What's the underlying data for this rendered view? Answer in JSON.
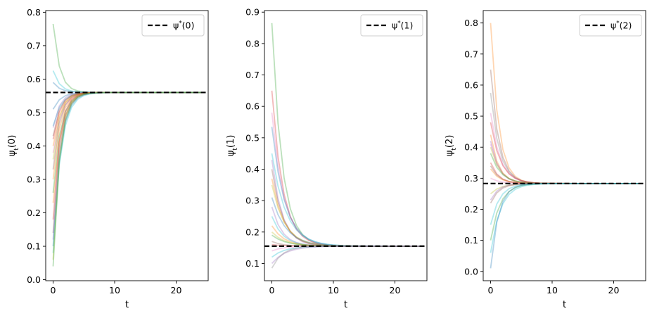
{
  "chart_data": [
    {
      "type": "line",
      "xlabel": "t",
      "ylabel": "ψ_t(0)",
      "xlim": [
        -1.2,
        25.2
      ],
      "ylim": [
        -0.003,
        0.805
      ],
      "xticks": [
        0,
        10,
        20
      ],
      "yticks": [
        0.0,
        0.1,
        0.2,
        0.3,
        0.4,
        0.5,
        0.6,
        0.7,
        0.8
      ],
      "ytick_labels": [
        "0.0",
        "0.1",
        "0.2",
        "0.3",
        "0.4",
        "0.5",
        "0.6",
        "0.7",
        "0.8"
      ],
      "legend": {
        "placement": "top-right",
        "entries": [
          "ψ*(0)"
        ]
      },
      "grid": false,
      "reference_line": {
        "label": "ψ*(0)",
        "y": 0.56,
        "style": "dashed",
        "color": "#000000"
      },
      "t": [
        0,
        1,
        2,
        3,
        4,
        5,
        6,
        7,
        8,
        9,
        10,
        11,
        12,
        13,
        14,
        15,
        16,
        17,
        18,
        19,
        20,
        21,
        22,
        23,
        24
      ],
      "initial_values": [
        0.765,
        0.625,
        0.59,
        0.51,
        0.46,
        0.455,
        0.43,
        0.42,
        0.4,
        0.38,
        0.36,
        0.33,
        0.3,
        0.26,
        0.23,
        0.18,
        0.14,
        0.12,
        0.1,
        0.08,
        0.06,
        0.04
      ],
      "rate": 0.42,
      "trajectory_colors": [
        "#2ca02c",
        "#17becf",
        "#1f77b4",
        "#1f77b4",
        "#17becf",
        "#9467bd",
        "#8c564b",
        "#d62728",
        "#ff7f0e",
        "#e377c2",
        "#bcbd22",
        "#8c564b",
        "#ff7f0e",
        "#2ca02c",
        "#ff7f0e",
        "#d62728",
        "#8c564b",
        "#9467bd",
        "#1f77b4",
        "#17becf",
        "#bcbd22",
        "#2ca02c"
      ]
    },
    {
      "type": "line",
      "xlabel": "t",
      "ylabel": "ψ_t(1)",
      "xlim": [
        -1.2,
        25.2
      ],
      "ylim": [
        0.045,
        0.905
      ],
      "xticks": [
        0,
        10,
        20
      ],
      "yticks": [
        0.1,
        0.2,
        0.3,
        0.4,
        0.5,
        0.6,
        0.7,
        0.8,
        0.9
      ],
      "ytick_labels": [
        "0.1",
        "0.2",
        "0.3",
        "0.4",
        "0.5",
        "0.6",
        "0.7",
        "0.8",
        "0.9"
      ],
      "legend": {
        "placement": "top-right",
        "entries": [
          "ψ*(1)"
        ]
      },
      "grid": false,
      "reference_line": {
        "label": "ψ*(1)",
        "y": 0.155,
        "style": "dashed",
        "color": "#000000"
      },
      "t": [
        0,
        1,
        2,
        3,
        4,
        5,
        6,
        7,
        8,
        9,
        10,
        11,
        12,
        13,
        14,
        15,
        16,
        17,
        18,
        19,
        20,
        21,
        22,
        23,
        24
      ],
      "initial_values": [
        0.865,
        0.65,
        0.58,
        0.535,
        0.45,
        0.43,
        0.4,
        0.37,
        0.35,
        0.31,
        0.28,
        0.25,
        0.22,
        0.2,
        0.19,
        0.17,
        0.16,
        0.14,
        0.12,
        0.1,
        0.085
      ],
      "rate": 0.6,
      "trajectory_colors": [
        "#2ca02c",
        "#d62728",
        "#e377c2",
        "#1f77b4",
        "#17becf",
        "#9467bd",
        "#8c564b",
        "#ff7f0e",
        "#bcbd22",
        "#1f77b4",
        "#9467bd",
        "#17becf",
        "#ff7f0e",
        "#bcbd22",
        "#2ca02c",
        "#8c564b",
        "#d62728",
        "#e377c2",
        "#17becf",
        "#9467bd",
        "#7f7f7f"
      ]
    },
    {
      "type": "line",
      "xlabel": "t",
      "ylabel": "ψ_t(2)",
      "xlim": [
        -1.2,
        25.2
      ],
      "ylim": [
        -0.03,
        0.84
      ],
      "xticks": [
        0,
        10,
        20
      ],
      "yticks": [
        0.0,
        0.1,
        0.2,
        0.3,
        0.4,
        0.5,
        0.6,
        0.7,
        0.8
      ],
      "ytick_labels": [
        "0.0",
        "0.1",
        "0.2",
        "0.3",
        "0.4",
        "0.5",
        "0.6",
        "0.7",
        "0.8"
      ],
      "legend": {
        "placement": "top-right",
        "entries": [
          "ψ*(2)"
        ]
      },
      "grid": false,
      "reference_line": {
        "label": "ψ*(2)",
        "y": 0.283,
        "style": "dashed",
        "color": "#000000"
      },
      "t": [
        0,
        1,
        2,
        3,
        4,
        5,
        6,
        7,
        8,
        9,
        10,
        11,
        12,
        13,
        14,
        15,
        16,
        17,
        18,
        19,
        20,
        21,
        22,
        23,
        24
      ],
      "initial_values": [
        0.8,
        0.65,
        0.575,
        0.51,
        0.48,
        0.44,
        0.42,
        0.41,
        0.4,
        0.38,
        0.35,
        0.34,
        0.33,
        0.3,
        0.25,
        0.23,
        0.22,
        0.15,
        0.1,
        0.06,
        0.01
      ],
      "rate": 0.5,
      "trajectory_colors": [
        "#ff7f0e",
        "#8c564b",
        "#7f7f7f",
        "#e377c2",
        "#d62728",
        "#ff7f0e",
        "#9467bd",
        "#e377c2",
        "#bcbd22",
        "#2ca02c",
        "#d62728",
        "#8c564b",
        "#ff7f0e",
        "#e377c2",
        "#bcbd22",
        "#9467bd",
        "#8c564b",
        "#17becf",
        "#2ca02c",
        "#17becf",
        "#1f77b4"
      ]
    }
  ]
}
